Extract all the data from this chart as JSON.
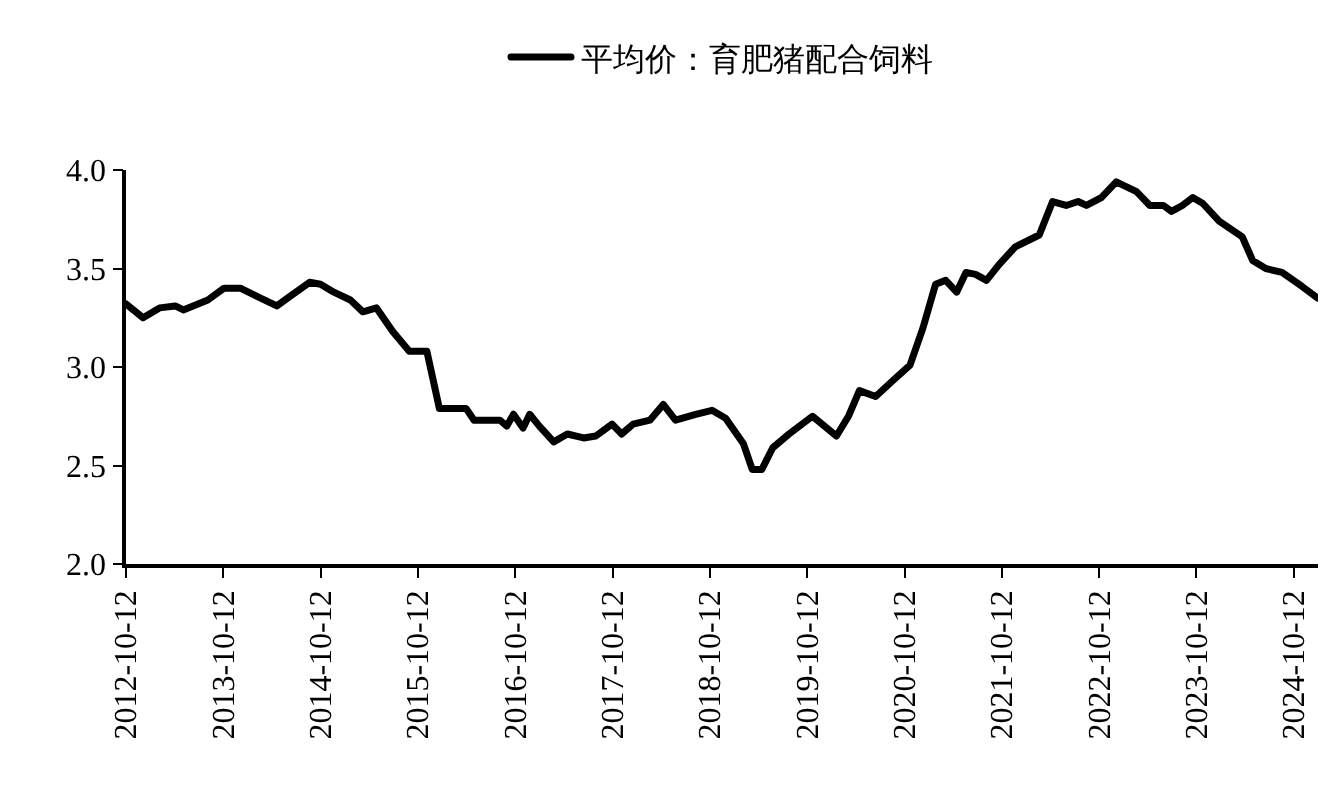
{
  "chart_data": {
    "type": "line",
    "legend": "top",
    "grid": false,
    "marker": "none",
    "line_style": "solid",
    "xlim": [
      "2012-10-12",
      "2025-01-10"
    ],
    "xticks": [
      "2012-10-12",
      "2013-10-12",
      "2014-10-12",
      "2015-10-12",
      "2016-10-12",
      "2017-10-12",
      "2018-10-12",
      "2019-10-12",
      "2020-10-12",
      "2021-10-12",
      "2022-10-12",
      "2023-10-12",
      "2024-10-12"
    ],
    "ylim": [
      2.0,
      4.0
    ],
    "yticks": [
      {
        "value": 2.0,
        "label": "2.0"
      },
      {
        "value": 2.5,
        "label": "2.5"
      },
      {
        "value": 3.0,
        "label": "3.0"
      },
      {
        "value": 3.5,
        "label": "3.5"
      },
      {
        "value": 4.0,
        "label": "4.0"
      }
    ],
    "x": [
      "2012-10-12",
      "2012-12-15",
      "2013-02-15",
      "2013-04-15",
      "2013-05-15",
      "2013-08-15",
      "2013-10-15",
      "2013-12-15",
      "2014-03-01",
      "2014-05-01",
      "2014-07-01",
      "2014-09-01",
      "2014-10-12",
      "2014-12-01",
      "2015-02-01",
      "2015-03-20",
      "2015-05-10",
      "2015-07-10",
      "2015-09-10",
      "2015-11-15",
      "2016-01-01",
      "2016-04-10",
      "2016-05-10",
      "2016-08-15",
      "2016-09-10",
      "2016-10-05",
      "2016-11-10",
      "2016-12-05",
      "2017-01-10",
      "2017-03-05",
      "2017-04-25",
      "2017-06-25",
      "2017-08-10",
      "2017-10-10",
      "2017-11-15",
      "2017-12-28",
      "2018-03-01",
      "2018-04-20",
      "2018-06-05",
      "2018-08-20",
      "2018-10-20",
      "2018-12-10",
      "2019-02-15",
      "2019-03-20",
      "2019-04-25",
      "2019-06-05",
      "2019-08-05",
      "2019-11-01",
      "2020-01-30",
      "2020-03-15",
      "2020-04-25",
      "2020-06-25",
      "2020-08-28",
      "2020-11-01",
      "2020-12-20",
      "2021-02-05",
      "2021-03-15",
      "2021-04-25",
      "2021-05-30",
      "2021-07-05",
      "2021-08-15",
      "2021-10-01",
      "2021-12-01",
      "2022-03-01",
      "2022-04-20",
      "2022-06-10",
      "2022-07-25",
      "2022-08-25",
      "2022-10-20",
      "2022-12-15",
      "2023-03-01",
      "2023-04-20",
      "2023-06-10",
      "2023-07-10",
      "2023-08-20",
      "2023-09-28",
      "2023-11-05",
      "2024-01-05",
      "2024-04-01",
      "2024-05-10",
      "2024-06-28",
      "2024-08-28",
      "2024-11-10",
      "2025-01-08"
    ],
    "series": [
      {
        "name": "平均价：育肥猪配合饲料",
        "color": "#000000",
        "values": [
          3.32,
          3.25,
          3.3,
          3.31,
          3.29,
          3.34,
          3.4,
          3.4,
          3.35,
          3.31,
          3.37,
          3.43,
          3.42,
          3.38,
          3.34,
          3.28,
          3.3,
          3.18,
          3.08,
          3.08,
          2.79,
          2.79,
          2.73,
          2.73,
          2.7,
          2.76,
          2.69,
          2.76,
          2.7,
          2.62,
          2.66,
          2.64,
          2.65,
          2.71,
          2.66,
          2.71,
          2.73,
          2.81,
          2.73,
          2.76,
          2.78,
          2.74,
          2.61,
          2.48,
          2.48,
          2.59,
          2.66,
          2.75,
          2.65,
          2.75,
          2.88,
          2.85,
          2.93,
          3.01,
          3.2,
          3.42,
          3.44,
          3.38,
          3.48,
          3.47,
          3.44,
          3.52,
          3.61,
          3.67,
          3.84,
          3.82,
          3.84,
          3.82,
          3.86,
          3.94,
          3.89,
          3.82,
          3.82,
          3.79,
          3.82,
          3.86,
          3.83,
          3.74,
          3.66,
          3.54,
          3.5,
          3.48,
          3.41,
          3.35
        ]
      }
    ]
  }
}
